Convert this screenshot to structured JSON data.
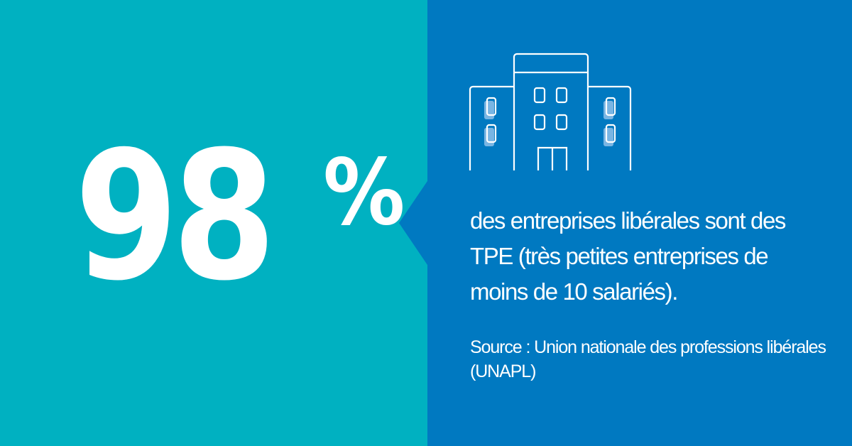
{
  "stat": {
    "number": "98",
    "unit": "%"
  },
  "description": "des entreprises libérales sont des TPE (très petites entreprises de moins de 10 salariés).",
  "source": "Source : Union nationale des professions libérales (UNAPL)",
  "icon": "building-icon",
  "colors": {
    "left_background": "#00b1c1",
    "right_background": "#0079c1",
    "text": "#ffffff",
    "window_fill": "#8fc0ea"
  }
}
